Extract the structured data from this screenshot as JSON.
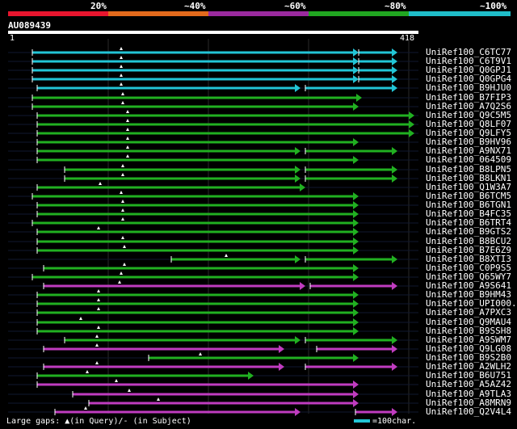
{
  "legend": {
    "items": [
      {
        "label": "20%",
        "color": "#e8152e"
      },
      {
        "label": "~40%",
        "color": "#e36a1c"
      },
      {
        "label": "~60%",
        "color": "#9b2a9f"
      },
      {
        "label": "~80%",
        "color": "#21a621"
      },
      {
        "label": "~100%",
        "color": "#1fbdc9"
      }
    ]
  },
  "query": {
    "name": "AU089439",
    "start": "1",
    "end": "418"
  },
  "hits": [
    {
      "name": "UniRef100_C6TC77",
      "color": "cyan"
    },
    {
      "name": "UniRef100_C6T9V1",
      "color": "cyan"
    },
    {
      "name": "UniRef100_Q0GPJ1",
      "color": "cyan"
    },
    {
      "name": "UniRef100_Q0GPG4",
      "color": "cyan"
    },
    {
      "name": "UniRef100_B9HJU0",
      "color": "cyan"
    },
    {
      "name": "UniRef100_B7FIP3",
      "color": "green"
    },
    {
      "name": "UniRef100_A7Q2S6",
      "color": "green"
    },
    {
      "name": "UniRef100_Q9C5M5",
      "color": "green"
    },
    {
      "name": "UniRef100_Q8LF07",
      "color": "green"
    },
    {
      "name": "UniRef100_Q9LFY5",
      "color": "green"
    },
    {
      "name": "UniRef100_B9HV96",
      "color": "green"
    },
    {
      "name": "UniRef100_A9NX71",
      "color": "green"
    },
    {
      "name": "UniRef100_064509",
      "color": "green"
    },
    {
      "name": "UniRef100_B8LPN5",
      "color": "green"
    },
    {
      "name": "UniRef100_B8LKN1",
      "color": "green"
    },
    {
      "name": "UniRef100_Q1W3A7",
      "color": "green"
    },
    {
      "name": "UniRef100_B6TCM5",
      "color": "green"
    },
    {
      "name": "UniRef100_B6TGN1",
      "color": "green"
    },
    {
      "name": "UniRef100_B4FC35",
      "color": "green"
    },
    {
      "name": "UniRef100_B6TRT4",
      "color": "green"
    },
    {
      "name": "UniRef100_B9GTS2",
      "color": "green"
    },
    {
      "name": "UniRef100_B8BCU2",
      "color": "green"
    },
    {
      "name": "UniRef100_B7E6Z9",
      "color": "green"
    },
    {
      "name": "UniRef100_B8XTI3",
      "color": "green"
    },
    {
      "name": "UniRef100_C0P9S5",
      "color": "green"
    },
    {
      "name": "UniRef100_Q65WY7",
      "color": "green"
    },
    {
      "name": "UniRef100_A9S641",
      "color": "magenta"
    },
    {
      "name": "UniRef100_B9HM43",
      "color": "green"
    },
    {
      "name": "UniRef100_UPI000..",
      "color": "green"
    },
    {
      "name": "UniRef100_A7PXC3",
      "color": "green"
    },
    {
      "name": "UniRef100_Q9MAU4",
      "color": "green"
    },
    {
      "name": "UniRef100_B9SSH8",
      "color": "green"
    },
    {
      "name": "UniRef100_A9SWM7",
      "color": "green"
    },
    {
      "name": "UniRef100_Q9LG08",
      "color": "magenta"
    },
    {
      "name": "UniRef100_B9S2B0",
      "color": "green"
    },
    {
      "name": "UniRef100_A2WLH2",
      "color": "magenta"
    },
    {
      "name": "UniRef100_B6U751",
      "color": "green"
    },
    {
      "name": "UniRef100_A5AZ42",
      "color": "magenta"
    },
    {
      "name": "UniRef100_A9TLA3",
      "color": "magenta"
    },
    {
      "name": "UniRef100_A8MRN9",
      "color": "magenta"
    },
    {
      "name": "UniRef100_Q2V4L4",
      "color": "magenta"
    }
  ],
  "footer": {
    "gaps_text": "Large gaps: ▲(in Query)/- (in Subject)",
    "scale_text": "=100char."
  }
}
